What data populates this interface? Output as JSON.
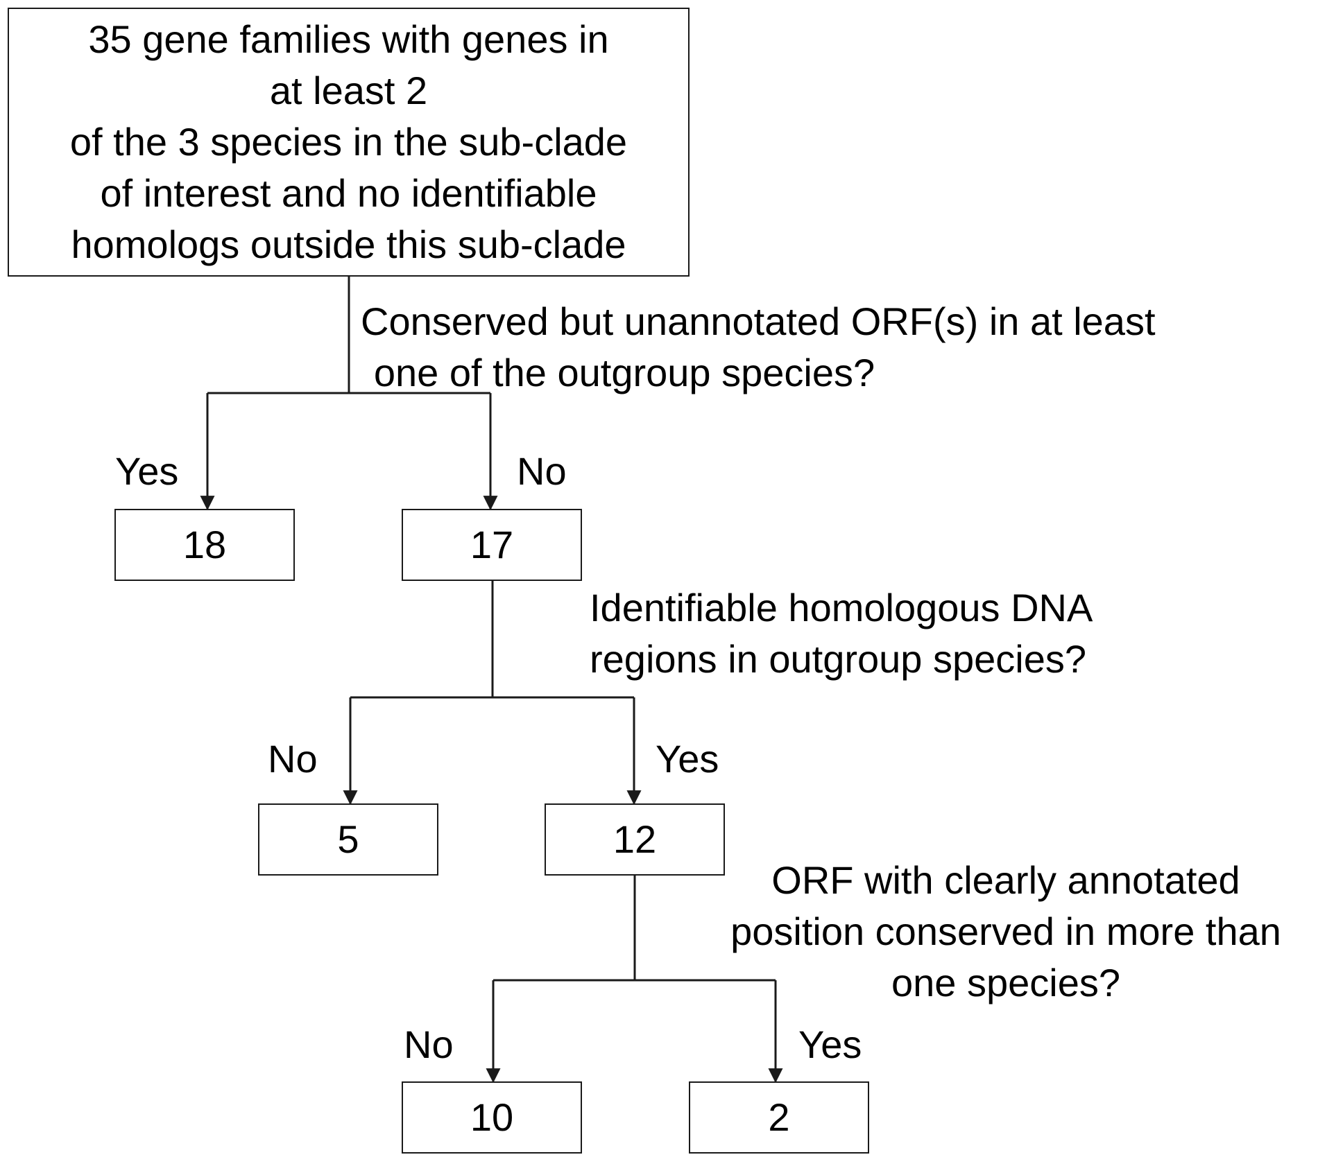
{
  "root": {
    "lines": [
      "35 gene families with genes in",
      "at least 2",
      "of the 3 species in the sub-clade",
      "of interest and no identifiable",
      "homologs outside this sub-clade"
    ]
  },
  "questions": [
    {
      "lines": [
        "Conserved but unannotated ORF(s) in at least",
        "one of the outgroup species?"
      ]
    },
    {
      "lines": [
        "Identifiable homologous DNA",
        "regions in outgroup species?"
      ]
    },
    {
      "lines": [
        "ORF with clearly annotated",
        "position conserved in more than",
        "one species?"
      ]
    }
  ],
  "branch_labels": {
    "level1_left": "Yes",
    "level1_right": "No",
    "level2_left": "No",
    "level2_right": "Yes",
    "level3_left": "No",
    "level3_right": "Yes"
  },
  "nodes": {
    "level1_yes": "18",
    "level1_no": "17",
    "level2_no": "5",
    "level2_yes": "12",
    "level3_no": "10",
    "level3_yes": "2"
  },
  "colors": {
    "line": "#1a1a1a",
    "box_border": "#1a1a1a",
    "background": "#ffffff"
  }
}
